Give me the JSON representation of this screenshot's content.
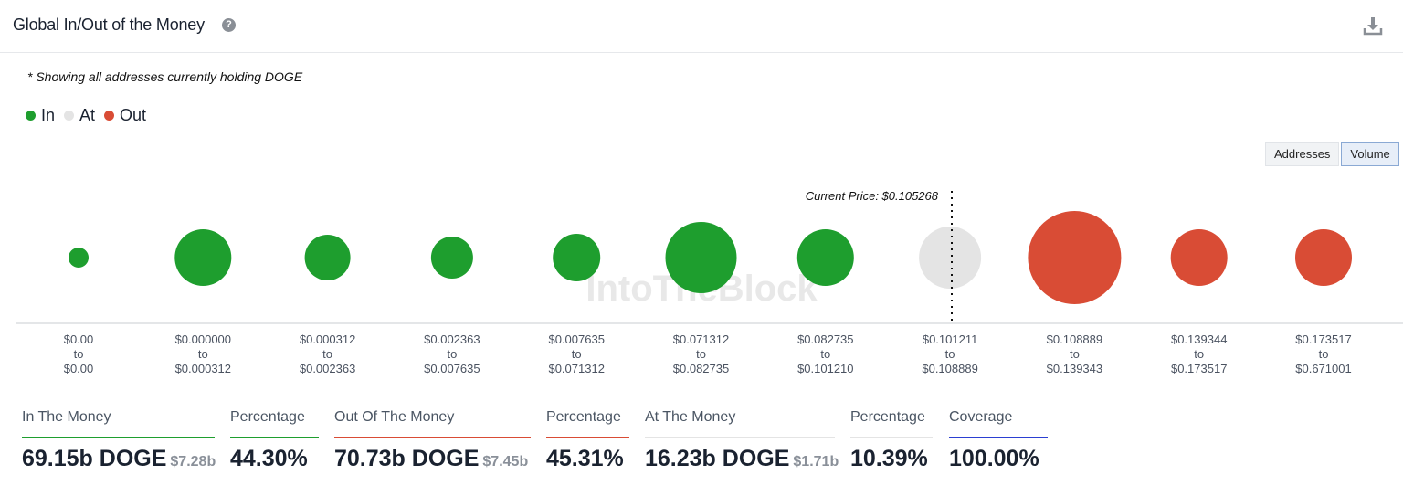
{
  "header": {
    "title": "Global In/Out of the Money",
    "help_icon": "question-circle-icon",
    "download_icon": "download-icon"
  },
  "note": "* Showing all addresses currently holding DOGE",
  "legend": [
    {
      "label": "In",
      "color": "#1e9e2e"
    },
    {
      "label": "At",
      "color": "#e4e4e4"
    },
    {
      "label": "Out",
      "color": "#d94c35"
    }
  ],
  "toggle": {
    "addresses": "Addresses",
    "volume": "Volume",
    "active": "Volume"
  },
  "watermark": "IntoTheBlock",
  "chart_data": {
    "type": "bubble",
    "title": "Global In/Out of the Money",
    "current_price_label": "Current Price: $0.105268",
    "current_price": 0.105268,
    "buckets": [
      {
        "from": "$0.00",
        "to_word": "to",
        "to": "$0.00",
        "status": "in",
        "size": 11
      },
      {
        "from": "$0.000000",
        "to_word": "to",
        "to": "$0.000312",
        "status": "in",
        "size": 31
      },
      {
        "from": "$0.000312",
        "to_word": "to",
        "to": "$0.002363",
        "status": "in",
        "size": 25
      },
      {
        "from": "$0.002363",
        "to_word": "to",
        "to": "$0.007635",
        "status": "in",
        "size": 23
      },
      {
        "from": "$0.007635",
        "to_word": "to",
        "to": "$0.071312",
        "status": "in",
        "size": 26
      },
      {
        "from": "$0.071312",
        "to_word": "to",
        "to": "$0.082735",
        "status": "in",
        "size": 39
      },
      {
        "from": "$0.082735",
        "to_word": "to",
        "to": "$0.101210",
        "status": "in",
        "size": 31
      },
      {
        "from": "$0.101211",
        "to_word": "to",
        "to": "$0.108889",
        "status": "at",
        "size": 34
      },
      {
        "from": "$0.108889",
        "to_word": "to",
        "to": "$0.139343",
        "status": "out",
        "size": 51
      },
      {
        "from": "$0.139344",
        "to_word": "to",
        "to": "$0.173517",
        "status": "out",
        "size": 31
      },
      {
        "from": "$0.173517",
        "to_word": "to",
        "to": "$0.671001",
        "status": "out",
        "size": 31
      }
    ]
  },
  "stats": [
    {
      "label": "In The Money",
      "value": "69.15b DOGE",
      "sub": "$7.28b",
      "color": "#1e9e2e"
    },
    {
      "label": "Percentage",
      "value": "44.30%",
      "sub": "",
      "color": "#1e9e2e"
    },
    {
      "label": "Out Of The Money",
      "value": "70.73b DOGE",
      "sub": "$7.45b",
      "color": "#d94c35"
    },
    {
      "label": "Percentage",
      "value": "45.31%",
      "sub": "",
      "color": "#d94c35"
    },
    {
      "label": "At The Money",
      "value": "16.23b DOGE",
      "sub": "$1.71b",
      "color": "#e4e4e4"
    },
    {
      "label": "Percentage",
      "value": "10.39%",
      "sub": "",
      "color": "#e4e4e4"
    },
    {
      "label": "Coverage",
      "value": "100.00%",
      "sub": "",
      "color": "#2b3fd1"
    }
  ]
}
